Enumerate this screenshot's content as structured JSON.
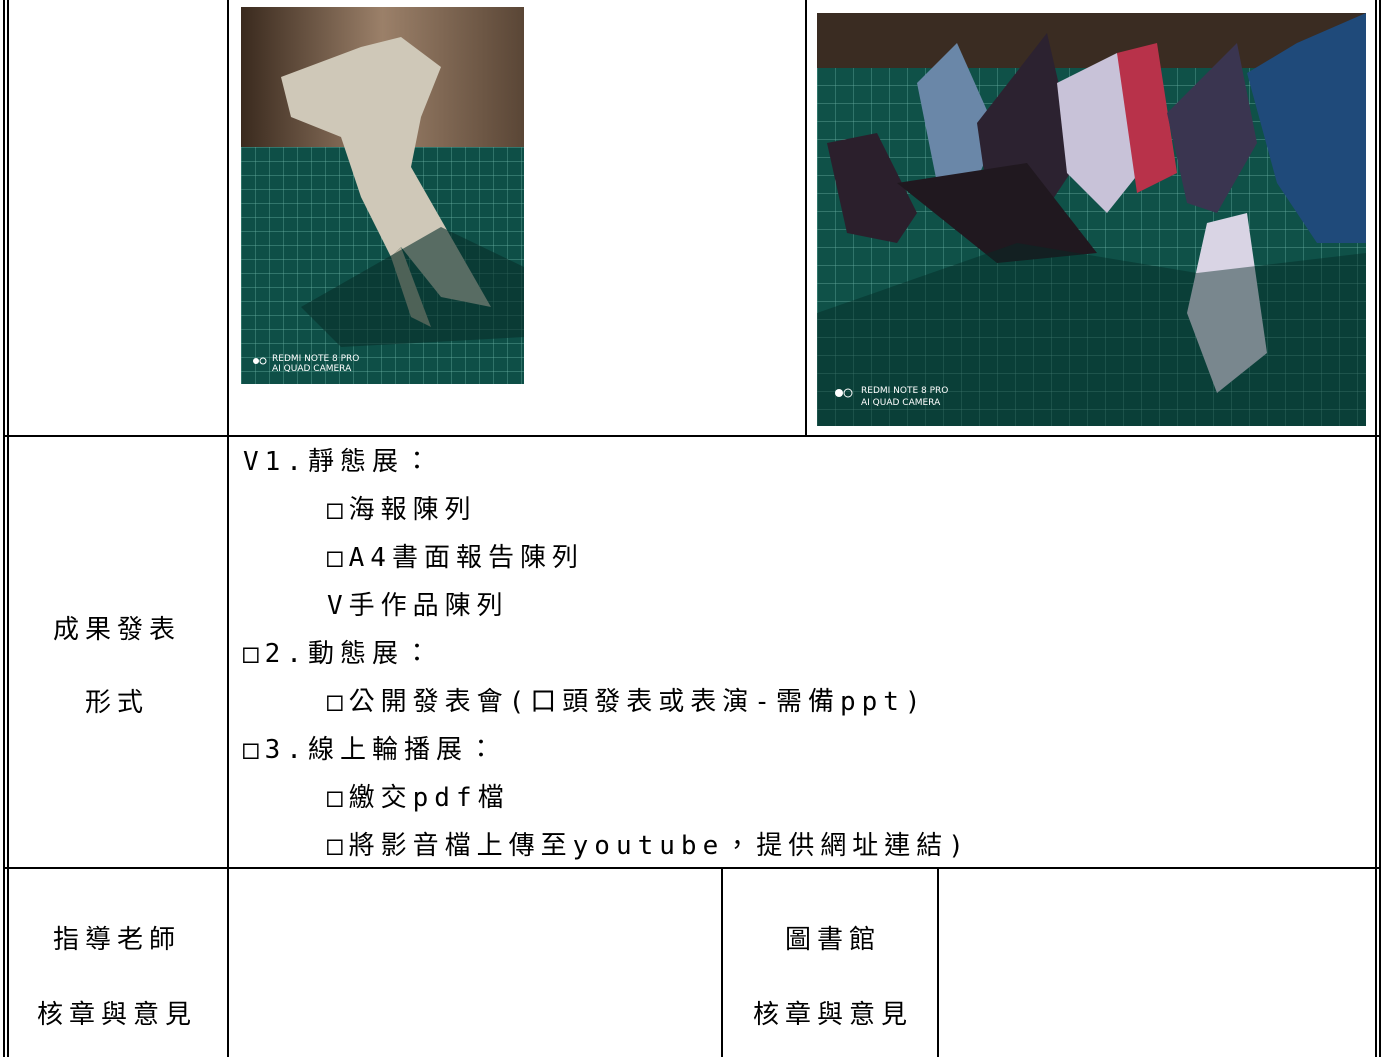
{
  "photos": [
    {
      "watermark": [
        "REDMI NOTE 8 PRO",
        "AI QUAD CAMERA"
      ]
    },
    {
      "watermark": [
        "REDMI NOTE 8 PRO",
        "AI QUAD CAMERA"
      ]
    }
  ],
  "presentation": {
    "label": [
      "成果發表",
      "形式"
    ],
    "lines": [
      "V1.靜態展：",
      "□海報陳列",
      "□A4書面報告陳列",
      "V手作品陳列",
      "□2.動態展：",
      "□公開發表會(口頭發表或表演-需備ppt)",
      "□3.線上輪播展：",
      "□繳交pdf檔",
      "□將影音檔上傳至youtube，提供網址連結)"
    ]
  },
  "signatures": [
    {
      "label": [
        "指導老師",
        "核章與意見"
      ]
    },
    {
      "label": [
        "圖書館",
        "核章與意見"
      ]
    }
  ]
}
